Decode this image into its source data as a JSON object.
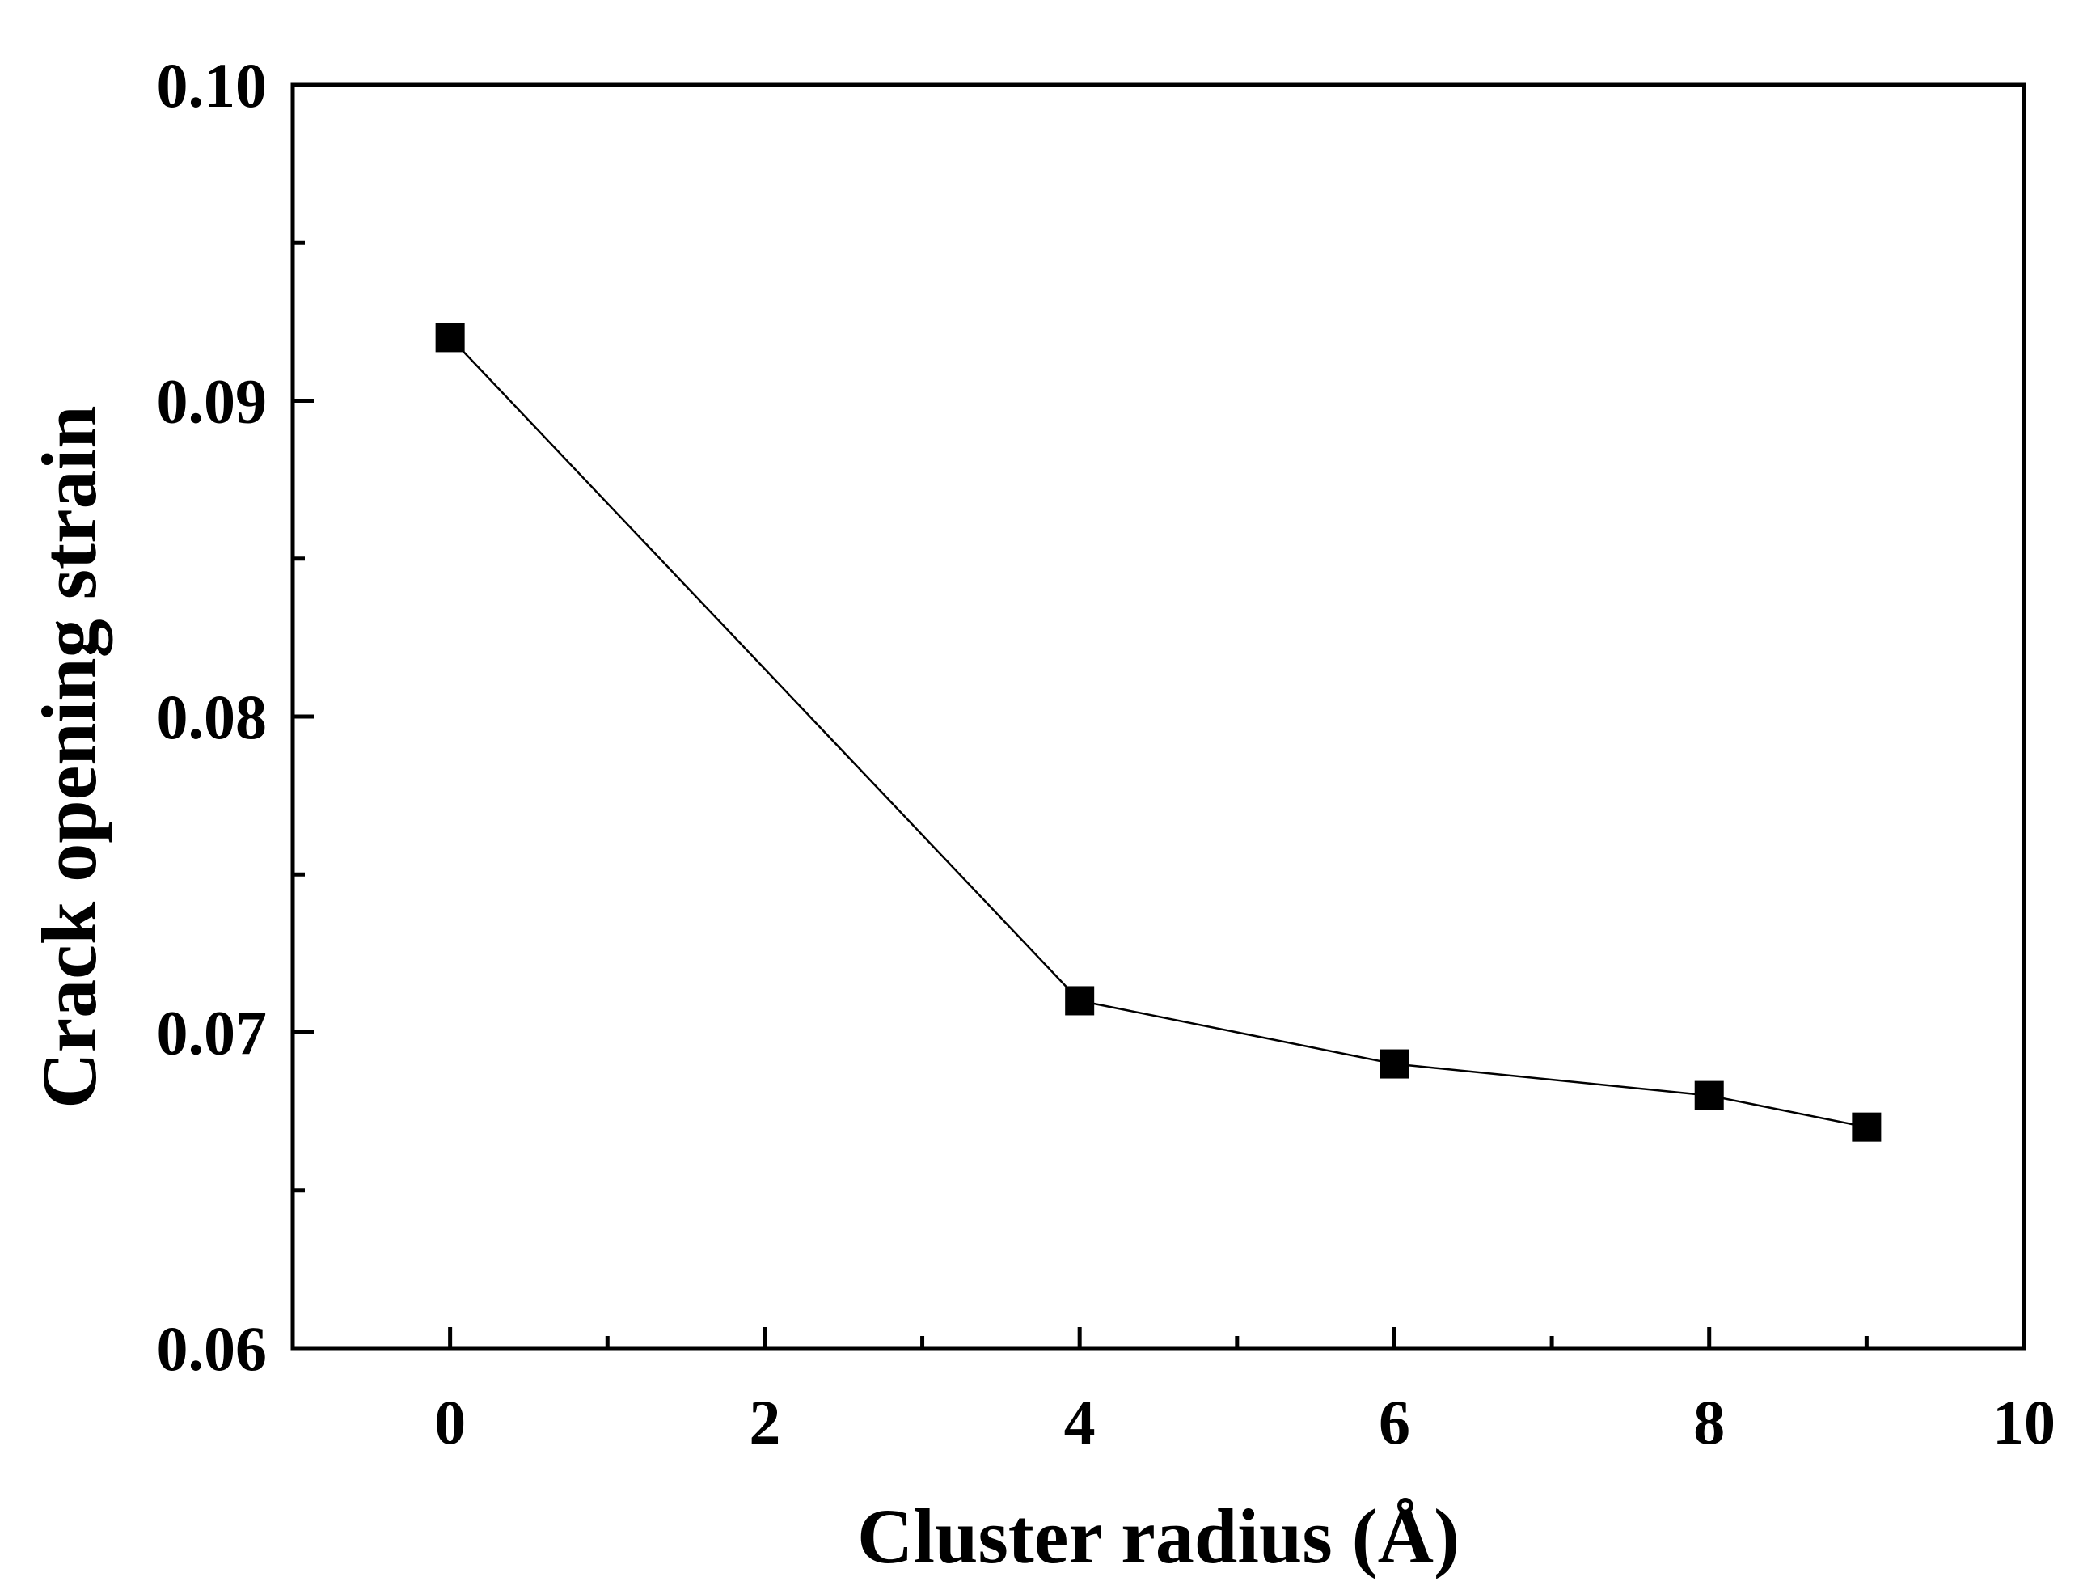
{
  "chart_data": {
    "type": "line",
    "title": "",
    "xlabel": "Cluster radius (Å)",
    "ylabel": "Crack opening strain",
    "xlim": [
      -1,
      10
    ],
    "ylim": [
      0.06,
      0.1
    ],
    "x_ticks": [
      0,
      2,
      4,
      6,
      8,
      10
    ],
    "x_tick_labels": [
      "0",
      "2",
      "4",
      "6",
      "8",
      "10"
    ],
    "x_minor_ticks": [
      1,
      3,
      5,
      7,
      9
    ],
    "y_ticks": [
      0.06,
      0.07,
      0.08,
      0.09,
      0.1
    ],
    "y_tick_labels": [
      "0.06",
      "0.07",
      "0.08",
      "0.09",
      "0.10"
    ],
    "y_minor_ticks": [
      0.065,
      0.075,
      0.085,
      0.095
    ],
    "grid": false,
    "legend": "none",
    "series": [
      {
        "x": [
          0,
          4,
          6,
          8,
          9
        ],
        "y": [
          0.092,
          0.071,
          0.069,
          0.068,
          0.067
        ],
        "marker": "square",
        "color": "#000000"
      }
    ]
  }
}
